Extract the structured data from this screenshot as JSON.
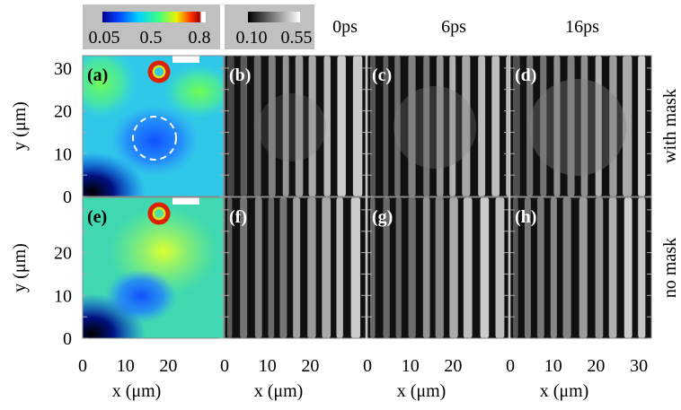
{
  "figure": {
    "colorbars": [
      {
        "ticks": [
          "0.05",
          "0.5",
          "0.8"
        ]
      },
      {
        "ticks": [
          "0.10",
          "0.55"
        ]
      }
    ],
    "times": [
      "0ps",
      "6ps",
      "16ps"
    ],
    "panels": [
      "(a)",
      "(b)",
      "(c)",
      "(d)",
      "(e)",
      "(f)",
      "(g)",
      "(h)"
    ],
    "rows": [
      "with mask",
      "no mask"
    ],
    "y_label": "y (μm)",
    "y_ticks": [
      [
        0,
        10,
        20,
        30
      ],
      [
        0,
        10,
        20
      ]
    ],
    "x_label": "x (μm)",
    "x_ticks": [
      [
        0,
        10,
        20
      ],
      [
        0,
        10,
        20
      ],
      [
        0,
        10,
        20
      ],
      [
        0,
        10,
        20,
        30
      ]
    ]
  }
}
